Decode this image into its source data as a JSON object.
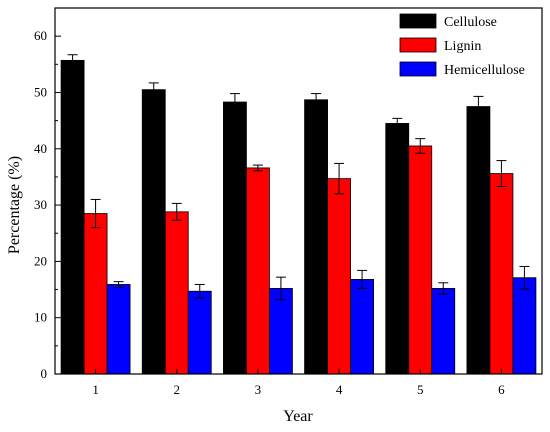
{
  "chart_data": {
    "type": "bar",
    "xlabel": "Year",
    "ylabel": "Percentage (%)",
    "categories": [
      "1",
      "2",
      "3",
      "4",
      "5",
      "6"
    ],
    "ylim": [
      0,
      65
    ],
    "yticks": [
      0,
      10,
      20,
      30,
      40,
      50,
      60
    ],
    "legend_position": "top-right",
    "grid": false,
    "error_bars": true,
    "series": [
      {
        "name": "Cellulose",
        "color": "#000000",
        "values": [
          55.7,
          50.5,
          48.3,
          48.7,
          44.5,
          47.5
        ],
        "errors": [
          1.0,
          1.2,
          1.5,
          1.1,
          0.9,
          1.8
        ]
      },
      {
        "name": "Lignin",
        "color": "#ff0000",
        "values": [
          28.5,
          28.8,
          36.6,
          34.7,
          40.5,
          35.6
        ],
        "errors": [
          2.5,
          1.5,
          0.5,
          2.7,
          1.3,
          2.3
        ]
      },
      {
        "name": "Hemicellulose",
        "color": "#0000ff",
        "values": [
          15.9,
          14.7,
          15.2,
          16.8,
          15.2,
          17.1
        ],
        "errors": [
          0.5,
          1.2,
          2.0,
          1.6,
          1.0,
          2.0
        ]
      }
    ]
  }
}
